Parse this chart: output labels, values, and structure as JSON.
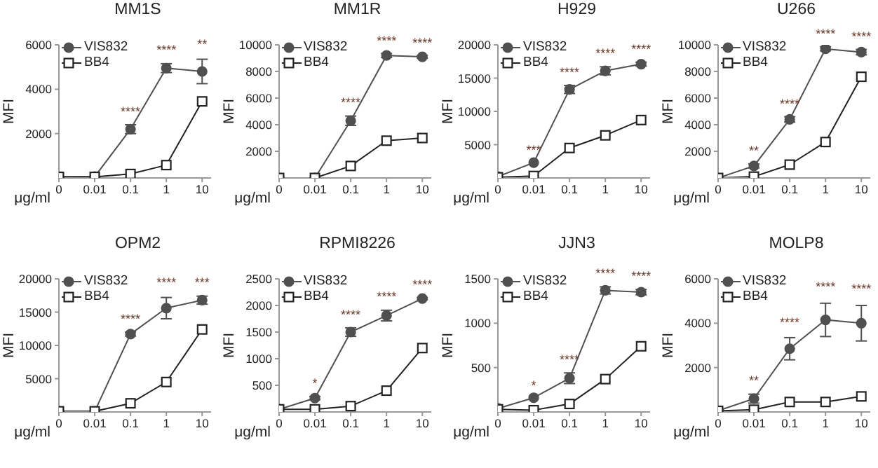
{
  "chart_data": [
    {
      "type": "line",
      "title": "MM1S",
      "xlabel": "μg/ml",
      "ylabel": "MFI",
      "categories": [
        "0",
        "0.01",
        "0.1",
        "1",
        "10"
      ],
      "ylim": [
        0,
        6000
      ],
      "yticks": [
        2000,
        4000,
        6000
      ],
      "legend": "top left",
      "grid": false,
      "series": [
        {
          "name": "VIS832",
          "color": "#505050",
          "marker": "circle",
          "values": [
            50,
            60,
            2200,
            4950,
            4800
          ],
          "errors": [
            null,
            null,
            200,
            200,
            550
          ]
        },
        {
          "name": "BB4",
          "color": "#222222",
          "marker": "square",
          "values": [
            50,
            50,
            180,
            580,
            3450
          ]
        }
      ],
      "annotations": [
        {
          "text": "****",
          "x": "0.1",
          "y": 2200
        },
        {
          "text": "****",
          "x": "1",
          "y": 4950
        },
        {
          "text": "**",
          "x": "10",
          "y": 4800
        }
      ]
    },
    {
      "type": "line",
      "title": "MM1R",
      "xlabel": "μg/ml",
      "ylabel": "MFI",
      "categories": [
        "0",
        "0.01",
        "0.1",
        "1",
        "10"
      ],
      "ylim": [
        0,
        10000
      ],
      "yticks": [
        2000,
        4000,
        6000,
        8000,
        10000
      ],
      "legend": "top left",
      "grid": false,
      "series": [
        {
          "name": "VIS832",
          "color": "#505050",
          "marker": "circle",
          "values": [
            0,
            0,
            4300,
            9200,
            9100
          ],
          "errors": [
            null,
            null,
            350,
            150,
            100
          ]
        },
        {
          "name": "BB4",
          "color": "#222222",
          "marker": "square",
          "values": [
            0,
            0,
            900,
            2800,
            3000
          ]
        }
      ],
      "annotations": [
        {
          "text": "****",
          "x": "0.1",
          "y": 4300
        },
        {
          "text": "****",
          "x": "1",
          "y": 9200
        },
        {
          "text": "****",
          "x": "10",
          "y": 9100
        }
      ]
    },
    {
      "type": "line",
      "title": "H929",
      "xlabel": "μg/ml",
      "ylabel": "MFI",
      "categories": [
        "0",
        "0.01",
        "0.1",
        "1",
        "10"
      ],
      "ylim": [
        0,
        20000
      ],
      "yticks": [
        5000,
        10000,
        15000,
        20000
      ],
      "legend": "top left",
      "grid": false,
      "series": [
        {
          "name": "VIS832",
          "color": "#505050",
          "marker": "circle",
          "values": [
            200,
            2300,
            13300,
            16100,
            17100
          ],
          "errors": [
            null,
            null,
            600,
            600,
            300
          ]
        },
        {
          "name": "BB4",
          "color": "#222222",
          "marker": "square",
          "values": [
            100,
            300,
            4500,
            6400,
            8700
          ]
        }
      ],
      "annotations": [
        {
          "text": "***",
          "x": "0.01",
          "y": 2300
        },
        {
          "text": "****",
          "x": "0.1",
          "y": 13300
        },
        {
          "text": "****",
          "x": "1",
          "y": 16100
        },
        {
          "text": "****",
          "x": "10",
          "y": 17100
        }
      ]
    },
    {
      "type": "line",
      "title": "U266",
      "xlabel": "μg/ml",
      "ylabel": "MFI",
      "categories": [
        "0",
        "0.01",
        "0.1",
        "1",
        "10"
      ],
      "ylim": [
        0,
        10000
      ],
      "yticks": [
        2000,
        4000,
        6000,
        8000,
        10000
      ],
      "legend": "top left",
      "grid": false,
      "series": [
        {
          "name": "VIS832",
          "color": "#505050",
          "marker": "circle",
          "values": [
            0,
            900,
            4400,
            9700,
            9450
          ],
          "errors": [
            null,
            150,
            200,
            150,
            200
          ]
        },
        {
          "name": "BB4",
          "color": "#222222",
          "marker": "square",
          "values": [
            0,
            100,
            1000,
            2700,
            7600
          ]
        }
      ],
      "annotations": [
        {
          "text": "**",
          "x": "0.01",
          "y": 900
        },
        {
          "text": "****",
          "x": "0.1",
          "y": 4400
        },
        {
          "text": "****",
          "x": "1",
          "y": 9700
        },
        {
          "text": "****",
          "x": "10",
          "y": 9450
        }
      ]
    },
    {
      "type": "line",
      "title": "OPM2",
      "xlabel": "μg/ml",
      "ylabel": "MFI",
      "categories": [
        "0",
        "0.01",
        "0.1",
        "1",
        "10"
      ],
      "ylim": [
        0,
        20000
      ],
      "yticks": [
        5000,
        10000,
        15000,
        20000
      ],
      "legend": "top left",
      "grid": false,
      "series": [
        {
          "name": "VIS832",
          "color": "#505050",
          "marker": "circle",
          "values": [
            100,
            100,
            11700,
            15600,
            16800
          ],
          "errors": [
            null,
            null,
            300,
            1600,
            600
          ]
        },
        {
          "name": "BB4",
          "color": "#222222",
          "marker": "square",
          "values": [
            100,
            100,
            1300,
            4500,
            12400
          ]
        }
      ],
      "annotations": [
        {
          "text": "****",
          "x": "0.1",
          "y": 11700
        },
        {
          "text": "****",
          "x": "1",
          "y": 15600
        },
        {
          "text": "***",
          "x": "10",
          "y": 16800
        }
      ]
    },
    {
      "type": "line",
      "title": "RPMI8226",
      "xlabel": "μg/ml",
      "ylabel": "MFI",
      "categories": [
        "0",
        "0.01",
        "0.1",
        "1",
        "10"
      ],
      "ylim": [
        0,
        2500
      ],
      "yticks": [
        500,
        1000,
        1500,
        2000,
        2500
      ],
      "legend": "top left",
      "grid": false,
      "series": [
        {
          "name": "VIS832",
          "color": "#505050",
          "marker": "circle",
          "values": [
            50,
            260,
            1500,
            1810,
            2130
          ],
          "errors": [
            null,
            30,
            80,
            100,
            20
          ]
        },
        {
          "name": "BB4",
          "color": "#222222",
          "marker": "square",
          "values": [
            50,
            50,
            110,
            400,
            1200
          ]
        }
      ],
      "annotations": [
        {
          "text": "*",
          "x": "0.01",
          "y": 260
        },
        {
          "text": "****",
          "x": "0.1",
          "y": 1500
        },
        {
          "text": "****",
          "x": "1",
          "y": 1810
        },
        {
          "text": "****",
          "x": "10",
          "y": 2130
        }
      ]
    },
    {
      "type": "line",
      "title": "JJN3",
      "xlabel": "μg/ml",
      "ylabel": "MFI",
      "categories": [
        "0",
        "0.01",
        "0.1",
        "1",
        "10"
      ],
      "ylim": [
        0,
        1500
      ],
      "yticks": [
        500,
        1000,
        1500
      ],
      "legend": "top left",
      "grid": false,
      "series": [
        {
          "name": "VIS832",
          "color": "#505050",
          "marker": "circle",
          "values": [
            40,
            160,
            380,
            1370,
            1350
          ],
          "errors": [
            null,
            null,
            60,
            40,
            30
          ]
        },
        {
          "name": "BB4",
          "color": "#222222",
          "marker": "square",
          "values": [
            30,
            20,
            90,
            370,
            740
          ]
        }
      ],
      "annotations": [
        {
          "text": "*",
          "x": "0.01",
          "y": 160
        },
        {
          "text": "****",
          "x": "0.1",
          "y": 380
        },
        {
          "text": "****",
          "x": "1",
          "y": 1370
        },
        {
          "text": "****",
          "x": "10",
          "y": 1350
        }
      ]
    },
    {
      "type": "line",
      "title": "MOLP8",
      "xlabel": "μg/ml",
      "ylabel": "MFI",
      "categories": [
        "0",
        "0.01",
        "0.1",
        "1",
        "10"
      ],
      "ylim": [
        0,
        6000
      ],
      "yticks": [
        2000,
        4000,
        6000
      ],
      "legend": "top left",
      "grid": false,
      "series": [
        {
          "name": "VIS832",
          "color": "#505050",
          "marker": "circle",
          "values": [
            50,
            600,
            2850,
            4150,
            4000
          ],
          "errors": [
            null,
            200,
            500,
            750,
            800
          ]
        },
        {
          "name": "BB4",
          "color": "#222222",
          "marker": "square",
          "values": [
            50,
            100,
            450,
            450,
            700
          ]
        }
      ],
      "annotations": [
        {
          "text": "**",
          "x": "0.01",
          "y": 600
        },
        {
          "text": "****",
          "x": "0.1",
          "y": 2850
        },
        {
          "text": "****",
          "x": "1",
          "y": 4150
        },
        {
          "text": "****",
          "x": "10",
          "y": 4000
        }
      ]
    }
  ]
}
